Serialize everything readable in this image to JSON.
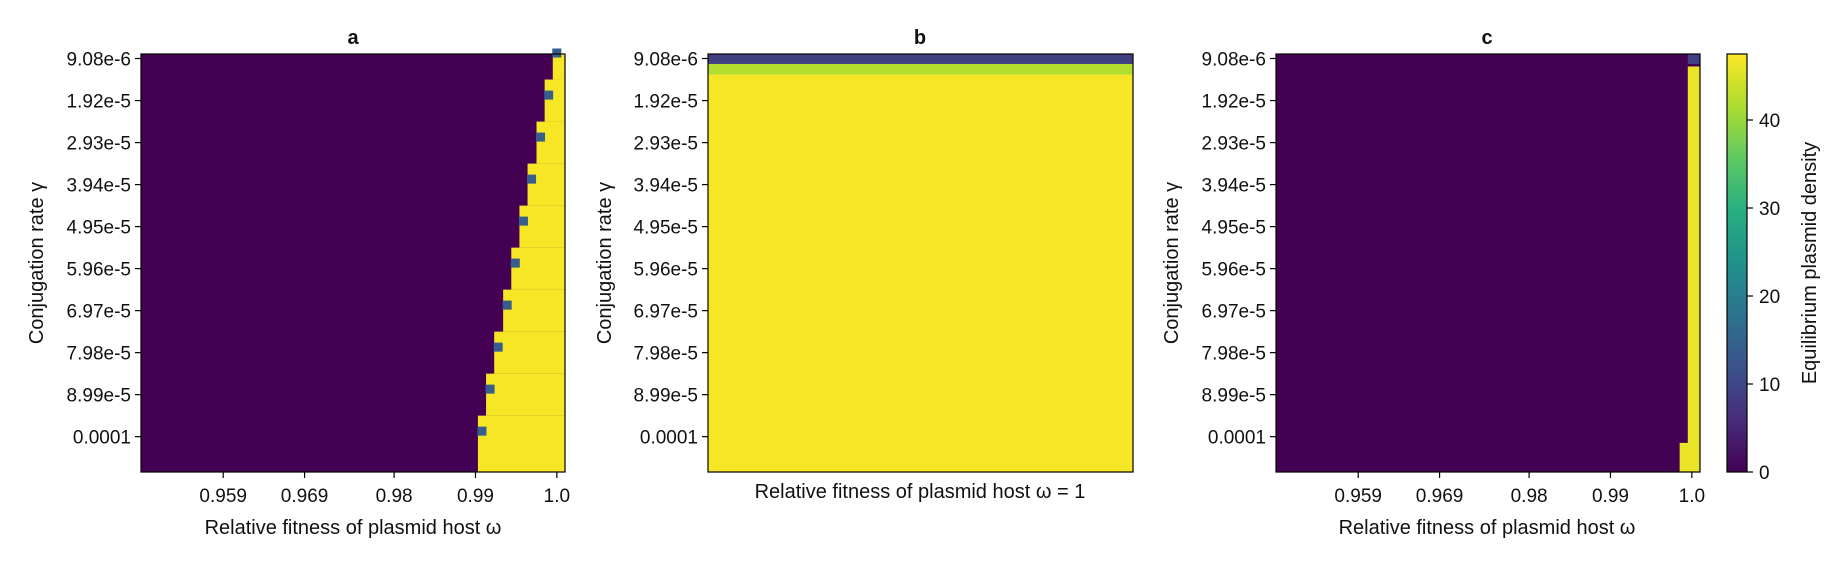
{
  "colorbar": {
    "label": "Equilibrium plasmid density",
    "ticks": [
      0,
      10,
      20,
      30,
      40
    ],
    "range": [
      0,
      47.5
    ]
  },
  "chart_data": [
    {
      "type": "heatmap",
      "title": "a",
      "xlabel": "Relative fitness of plasmid host ω",
      "ylabel": "Conjugation rate γ",
      "x_ticks": [
        "0.959",
        "0.969",
        "0.98",
        "0.99",
        "1.0"
      ],
      "y_ticks": [
        "9.08e-6",
        "1.92e-5",
        "2.93e-5",
        "3.94e-5",
        "4.95e-5",
        "5.96e-5",
        "6.97e-5",
        "7.98e-5",
        "8.99e-5",
        "0.0001"
      ],
      "x_range": [
        0.9489,
        1.001
      ],
      "y_range": [
        8e-06,
        0.0001085
      ],
      "y_axis": "increasing-downward",
      "low_value": 0,
      "high_value": 47,
      "boundary": [
        {
          "gamma": 9.08e-06,
          "omega": 0.9995
        },
        {
          "gamma": 1.92e-05,
          "omega": 0.9985
        },
        {
          "gamma": 2.93e-05,
          "omega": 0.9975
        },
        {
          "gamma": 3.94e-05,
          "omega": 0.9964
        },
        {
          "gamma": 4.95e-05,
          "omega": 0.9954
        },
        {
          "gamma": 5.96e-05,
          "omega": 0.9944
        },
        {
          "gamma": 6.97e-05,
          "omega": 0.9934
        },
        {
          "gamma": 7.98e-05,
          "omega": 0.9923
        },
        {
          "gamma": 8.99e-05,
          "omega": 0.9913
        },
        {
          "gamma": 0.0001,
          "omega": 0.9903
        }
      ],
      "edge_value": 14
    },
    {
      "type": "heatmap",
      "title": "b",
      "xlabel": "Relative fitness of plasmid host ω = 1",
      "ylabel": "Conjugation rate γ",
      "y_ticks": [
        "9.08e-6",
        "1.92e-5",
        "2.93e-5",
        "3.94e-5",
        "4.95e-5",
        "5.96e-5",
        "6.97e-5",
        "7.98e-5",
        "8.99e-5",
        "0.0001"
      ],
      "y_range": [
        8e-06,
        0.0001085
      ],
      "y_axis": "increasing-downward",
      "bands": [
        {
          "gamma_from": 8e-06,
          "gamma_to": 1.04e-05,
          "value": 9
        },
        {
          "gamma_from": 1.04e-05,
          "gamma_to": 1.3e-05,
          "value": 42
        },
        {
          "gamma_from": 1.3e-05,
          "gamma_to": 0.0001085,
          "value": 47
        }
      ]
    },
    {
      "type": "heatmap",
      "title": "c",
      "xlabel": "Relative fitness of plasmid host ω",
      "ylabel": "Conjugation rate γ",
      "x_ticks": [
        "0.959",
        "0.969",
        "0.98",
        "0.99",
        "1.0"
      ],
      "y_ticks": [
        "9.08e-6",
        "1.92e-5",
        "2.93e-5",
        "3.94e-5",
        "4.95e-5",
        "5.96e-5",
        "6.97e-5",
        "7.98e-5",
        "8.99e-5",
        "0.0001"
      ],
      "x_range": [
        0.9489,
        1.001
      ],
      "y_range": [
        8e-06,
        0.0001085
      ],
      "y_axis": "increasing-downward",
      "low_value": 0,
      "high_value": 47,
      "strip": {
        "omega_from": 0.9995,
        "omega_to": 1.001,
        "gamma_from": 1.1e-05,
        "value": 46
      },
      "strip_top": {
        "gamma_from": 8e-06,
        "gamma_to": 1.04e-05,
        "value": 9
      },
      "strip_bottom": {
        "omega_from": 0.9985,
        "gamma_from": 0.0001015,
        "value": 46
      }
    }
  ]
}
